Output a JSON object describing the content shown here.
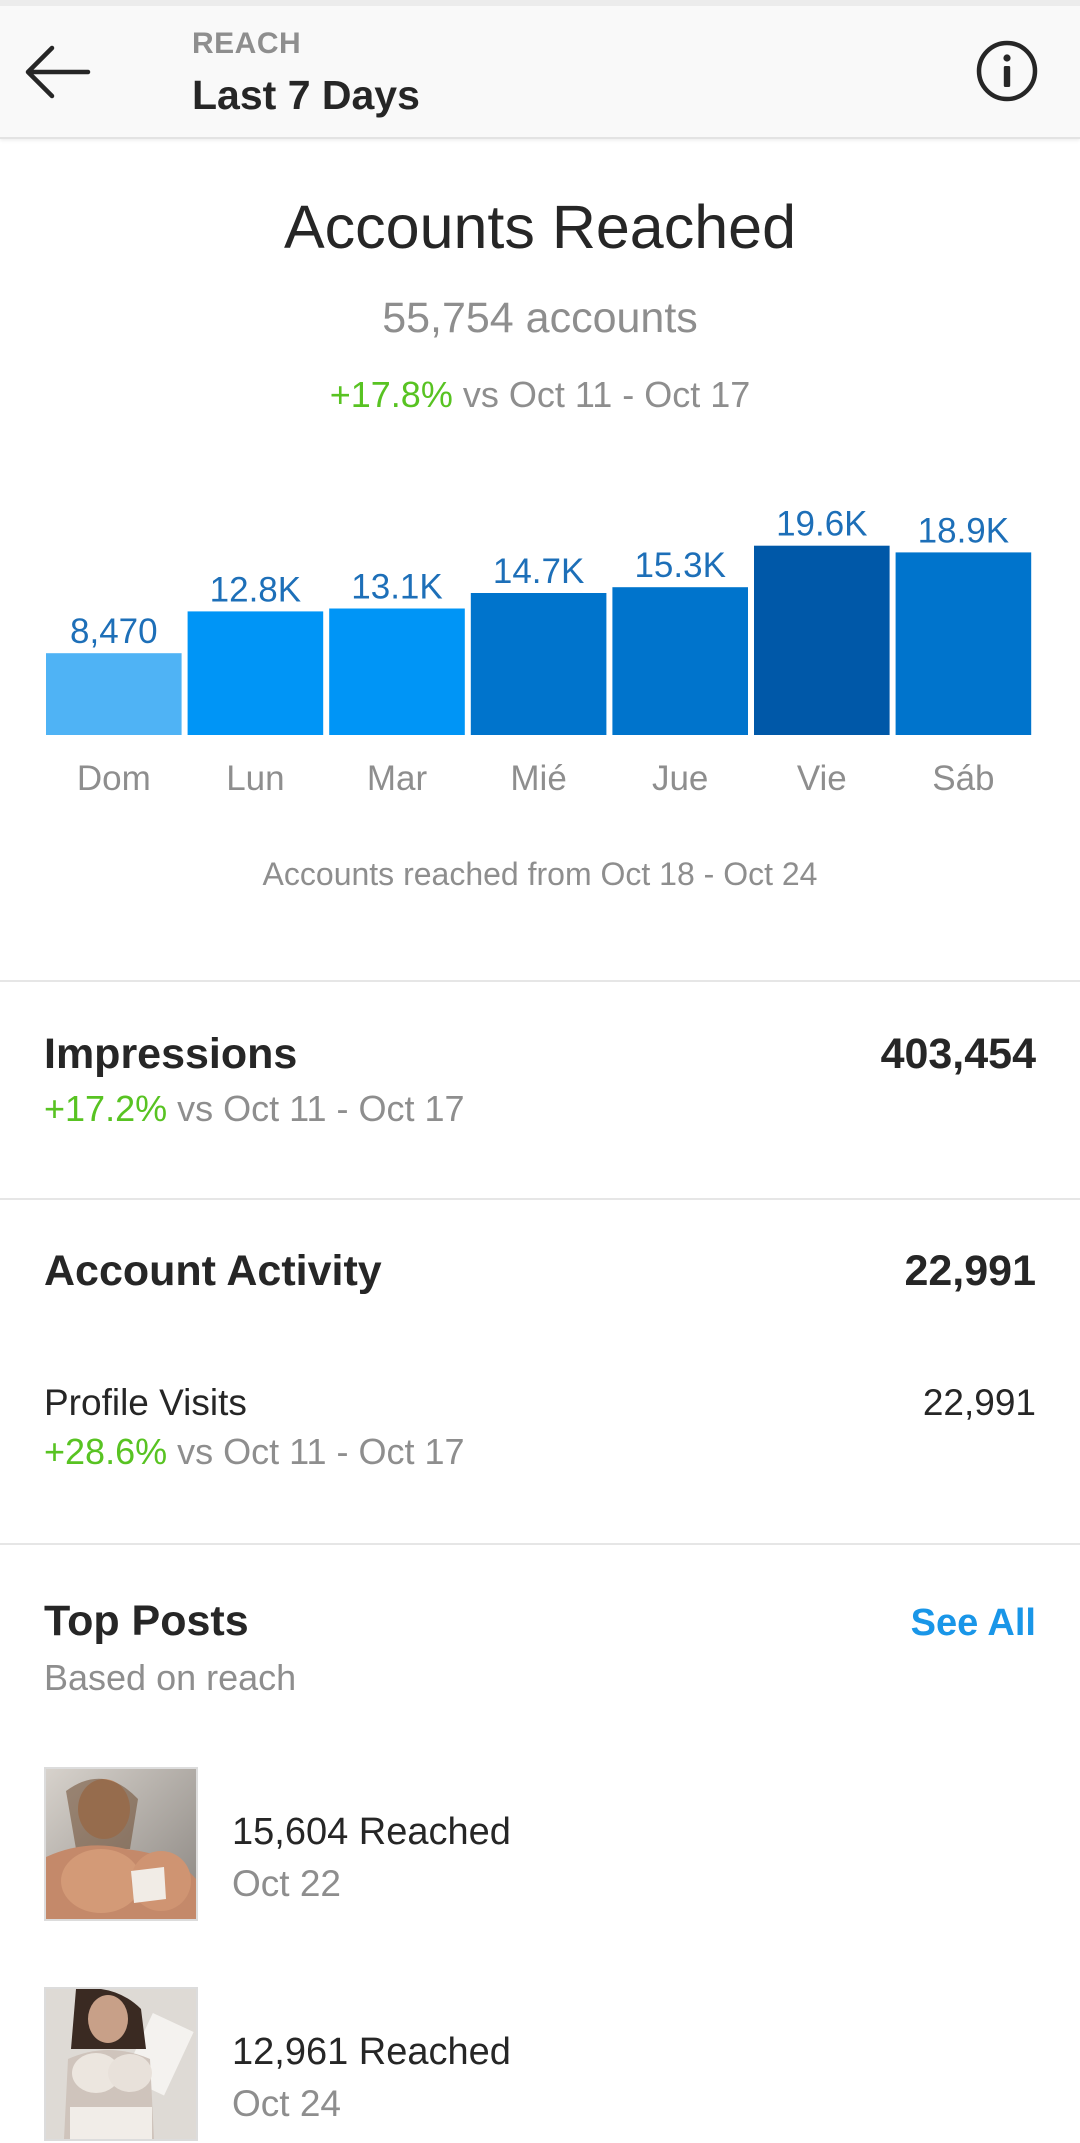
{
  "header": {
    "eyebrow": "REACH",
    "title": "Last 7 Days",
    "back_icon": "arrow-left-icon",
    "info_icon": "info-circle-icon"
  },
  "reach": {
    "title": "Accounts Reached",
    "count": "55,754 accounts",
    "change": "+17.8%",
    "compare": " vs Oct 11 - Oct 17",
    "caption": "Accounts reached from Oct 18 - Oct 24"
  },
  "chart_data": {
    "type": "bar",
    "categories": [
      "Dom",
      "Lun",
      "Mar",
      "Mié",
      "Jue",
      "Vie",
      "Sáb"
    ],
    "values": [
      8470,
      12800,
      13100,
      14700,
      15300,
      19600,
      18900
    ],
    "labels": [
      "8,470",
      "12.8K",
      "13.1K",
      "14.7K",
      "15.3K",
      "19.6K",
      "18.9K"
    ],
    "colors": [
      "#4fb3f5",
      "#0095f6",
      "#0095f6",
      "#0074cc",
      "#0074cc",
      "#0058a8",
      "#0074cc"
    ],
    "label_color": "#1d6fb8",
    "axis_label_color": "#8e8e8e"
  },
  "impressions": {
    "title": "Impressions",
    "value": "403,454",
    "change": "+17.2%",
    "compare": " vs Oct 11 - Oct 17"
  },
  "activity": {
    "title": "Account Activity",
    "value": "22,991",
    "profile_visits_label": "Profile Visits",
    "profile_visits_value": "22,991",
    "change": "+28.6%",
    "compare": " vs Oct 11 - Oct 17"
  },
  "top_posts": {
    "title": "Top Posts",
    "subtitle": "Based on reach",
    "see_all": "See All",
    "posts": [
      {
        "reached": "15,604 Reached",
        "date": "Oct 22"
      },
      {
        "reached": "12,961 Reached",
        "date": "Oct 24"
      }
    ]
  },
  "colors": {
    "positive": "#58c322",
    "link": "#1996e8"
  }
}
